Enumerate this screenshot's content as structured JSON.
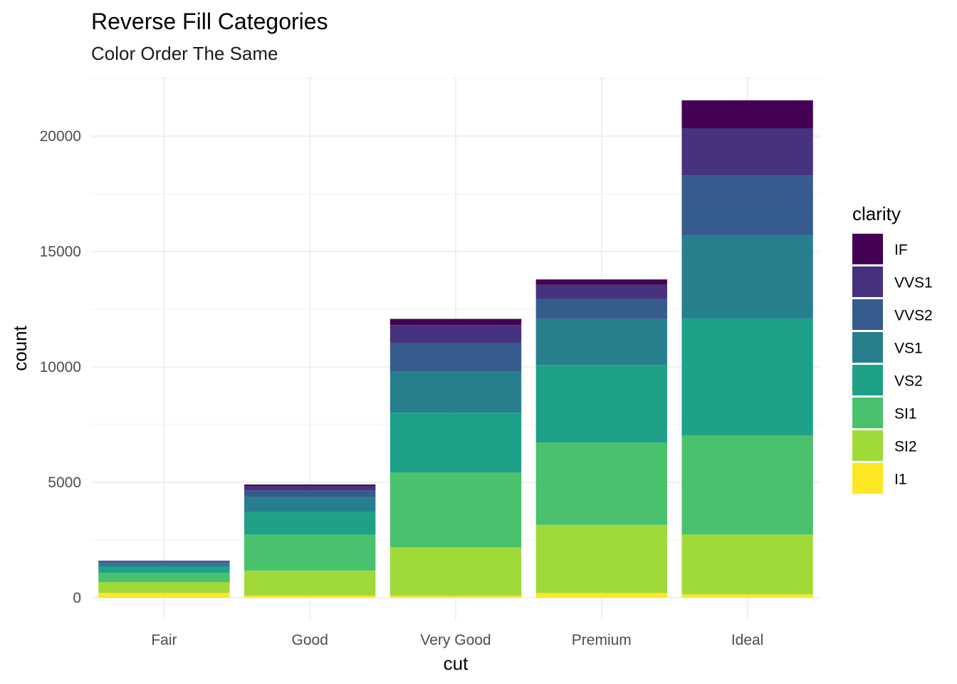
{
  "chart_data": {
    "type": "bar",
    "stacked": true,
    "title": "Reverse Fill Categories",
    "subtitle": "Color Order The Same",
    "xlabel": "cut",
    "ylabel": "count",
    "categories": [
      "Fair",
      "Good",
      "Very Good",
      "Premium",
      "Ideal"
    ],
    "ylim": [
      0,
      22500
    ],
    "yticks": [
      0,
      5000,
      10000,
      15000,
      20000
    ],
    "grid": true,
    "legend_title": "clarity",
    "legend_position": "right",
    "series": [
      {
        "name": "I1",
        "color": "#FDE725",
        "values": [
          210,
          96,
          84,
          205,
          146
        ]
      },
      {
        "name": "SI2",
        "color": "#A0DA39",
        "values": [
          466,
          1081,
          2100,
          2949,
          2598
        ]
      },
      {
        "name": "SI1",
        "color": "#4AC16D",
        "values": [
          408,
          1560,
          3240,
          3575,
          4282
        ]
      },
      {
        "name": "VS2",
        "color": "#1FA187",
        "values": [
          261,
          978,
          2591,
          3357,
          5071
        ]
      },
      {
        "name": "VS1",
        "color": "#277F8E",
        "values": [
          170,
          648,
          1775,
          1989,
          3589
        ]
      },
      {
        "name": "VVS2",
        "color": "#365C8D",
        "values": [
          69,
          286,
          1235,
          870,
          2606
        ]
      },
      {
        "name": "VVS1",
        "color": "#46327E",
        "values": [
          17,
          186,
          789,
          616,
          2047
        ]
      },
      {
        "name": "IF",
        "color": "#440154",
        "values": [
          9,
          71,
          268,
          230,
          1212
        ]
      }
    ]
  }
}
